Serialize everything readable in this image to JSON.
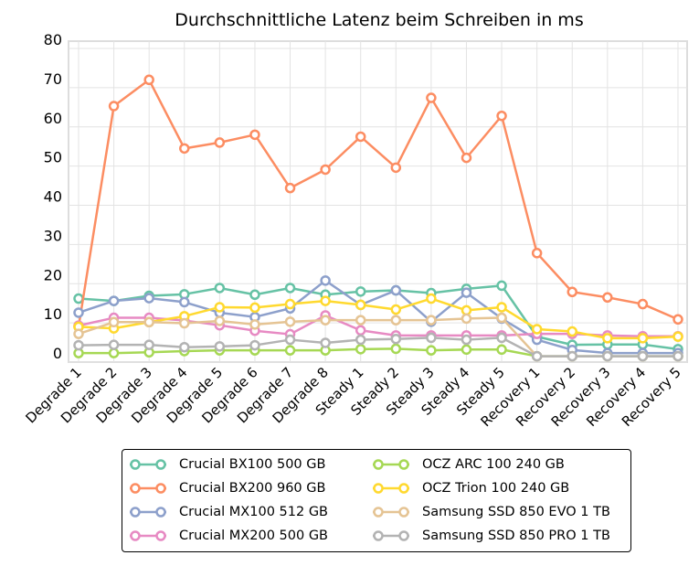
{
  "chart_data": {
    "type": "line",
    "title": "Durchschnittliche Latenz beim Schreiben in ms",
    "xlabel": "",
    "ylabel": "",
    "ylim": [
      0,
      80
    ],
    "yticks": [
      "0",
      "10",
      "20",
      "30",
      "40",
      "50",
      "60",
      "70",
      "80"
    ],
    "grid": true,
    "legend_position": "bottom",
    "categories": [
      "Degrade 1",
      "Degrade 2",
      "Degrade 3",
      "Degrade 4",
      "Degrade 5",
      "Degrade 6",
      "Degrade 7",
      "Degrade 8",
      "Steady 1",
      "Steady 2",
      "Steady 3",
      "Steady 4",
      "Steady 5",
      "Recovery 1",
      "Recovery 2",
      "Recovery 3",
      "Recovery 4",
      "Recovery 5"
    ],
    "series": [
      {
        "name": "Crucial BX100 500 GB",
        "color": "#66c2a5",
        "values": [
          16.2,
          15.6,
          16.9,
          17.3,
          18.9,
          17.2,
          18.9,
          17.2,
          18.0,
          18.3,
          17.6,
          18.7,
          19.5,
          6.5,
          4.4,
          4.5,
          4.5,
          3.3
        ]
      },
      {
        "name": "Crucial BX200 960 GB",
        "color": "#fc8d62",
        "values": [
          9,
          65.3,
          72,
          54.5,
          56,
          58,
          44.4,
          49.1,
          57.5,
          49.6,
          67.4,
          52.1,
          62.8,
          27.8,
          17.9,
          16.5,
          14.8,
          10.9
        ]
      },
      {
        "name": "Crucial MX100 512 GB",
        "color": "#8da0cb",
        "values": [
          12.6,
          15.6,
          16.3,
          15.3,
          12.6,
          11.5,
          13.7,
          20.8,
          14.6,
          18.3,
          10.3,
          17.7,
          11.1,
          5.7,
          3.1,
          2.3,
          2.3,
          2.3
        ]
      },
      {
        "name": "Crucial MX200 500 GB",
        "color": "#e78ac3",
        "values": [
          9.3,
          11.3,
          11.3,
          10.6,
          9.4,
          8.0,
          7.1,
          11.9,
          8.1,
          6.8,
          6.8,
          6.8,
          6.8,
          7.2,
          7.2,
          6.8,
          6.6,
          6.6
        ]
      },
      {
        "name": "OCZ ARC 100 240 GB",
        "color": "#a6d854",
        "values": [
          2.3,
          2.3,
          2.5,
          2.8,
          3.0,
          3.0,
          3.0,
          3.0,
          3.3,
          3.4,
          3.0,
          3.2,
          3.2,
          1.5,
          1.5,
          1.5,
          1.5,
          1.5
        ]
      },
      {
        "name": "OCZ Trion 100 240 GB",
        "color": "#ffd92f",
        "values": [
          9.0,
          8.6,
          10.2,
          11.7,
          14.0,
          13.9,
          14.8,
          15.6,
          14.6,
          13.4,
          16.2,
          13.2,
          14.0,
          8.4,
          7.8,
          6.1,
          6.1,
          6.5
        ]
      },
      {
        "name": "Samsung SSD 850 EVO 1 TB",
        "color": "#e5c494",
        "values": [
          7.2,
          10.2,
          10.2,
          9.9,
          10.5,
          9.6,
          10.3,
          10.7,
          10.7,
          10.7,
          10.7,
          11.1,
          11.3,
          1.5,
          1.5,
          1.5,
          1.5,
          1.5
        ]
      },
      {
        "name": "Samsung SSD 850 PRO 1 TB",
        "color": "#b3b3b3",
        "values": [
          4.3,
          4.4,
          4.4,
          3.8,
          4.0,
          4.3,
          5.7,
          4.9,
          5.7,
          5.9,
          6.2,
          5.7,
          6.2,
          1.5,
          1.5,
          1.5,
          1.5,
          1.5
        ]
      }
    ]
  }
}
